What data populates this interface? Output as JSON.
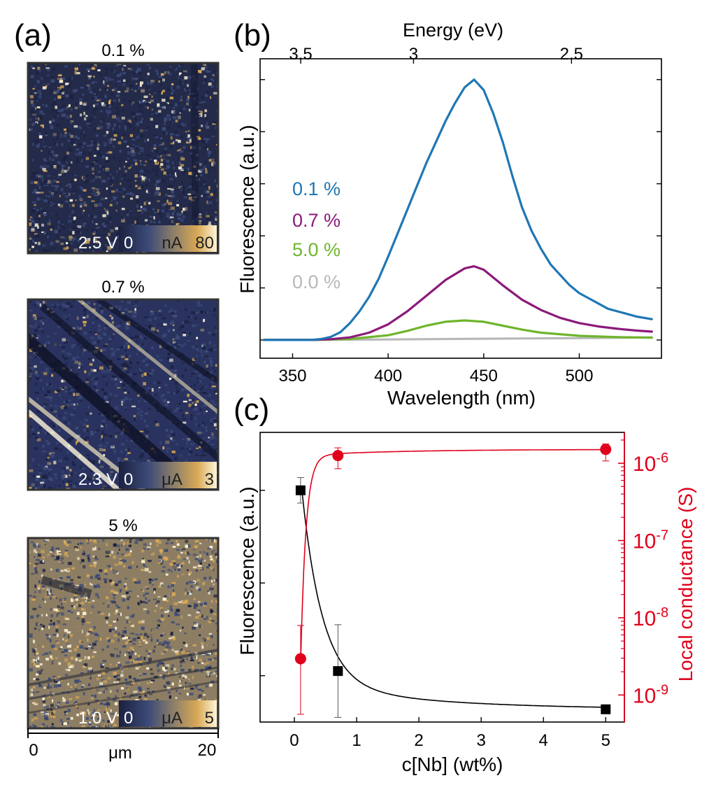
{
  "panel_a": {
    "label": "(a)",
    "maps": [
      {
        "title": "0.1 %",
        "voltage": "2.5 V",
        "cb_min": "0",
        "cb_unit": "nA",
        "cb_max": "80"
      },
      {
        "title": "0.7 %",
        "voltage": "2.3 V",
        "cb_min": "0",
        "cb_unit": "μA",
        "cb_max": "3"
      },
      {
        "title": "5 %",
        "voltage": "1.0 V",
        "cb_min": "0",
        "cb_unit": "μA",
        "cb_max": "5"
      }
    ],
    "scale": {
      "start": "0",
      "unit": "μm",
      "end": "20"
    },
    "colormap": [
      "#1b2140",
      "#3b4a78",
      "#8a7d6a",
      "#d8a855",
      "#fff5d6"
    ]
  },
  "chart_data": [
    {
      "panel": "(b)",
      "type": "line",
      "title": "",
      "xlabel": "Wavelength (nm)",
      "ylabel": "Fluorescence (a.u.)",
      "top_xlabel": "Energy (eV)",
      "xlim": [
        333,
        543
      ],
      "ylim": [
        -0.07,
        1.08
      ],
      "xticks": [
        350,
        400,
        450,
        500
      ],
      "xtick_labels": [
        "350",
        "400",
        "450",
        "500"
      ],
      "top_ticks_eV": [
        3.5,
        3,
        2.5
      ],
      "top_tick_labels": [
        "3.5",
        "3",
        "2.5"
      ],
      "series": [
        {
          "name": "0.1 %",
          "color": "#1f77b4",
          "x": [
            335,
            350,
            360,
            365,
            370,
            375,
            380,
            385,
            390,
            395,
            400,
            405,
            410,
            415,
            420,
            425,
            430,
            435,
            440,
            445,
            450,
            455,
            460,
            465,
            470,
            475,
            480,
            485,
            490,
            495,
            500,
            505,
            510,
            515,
            520,
            525,
            530,
            538
          ],
          "y": [
            0,
            0,
            0,
            0.004,
            0.012,
            0.03,
            0.065,
            0.11,
            0.165,
            0.235,
            0.32,
            0.41,
            0.5,
            0.59,
            0.68,
            0.76,
            0.84,
            0.91,
            0.97,
            1.0,
            0.96,
            0.87,
            0.76,
            0.63,
            0.51,
            0.42,
            0.35,
            0.29,
            0.25,
            0.21,
            0.18,
            0.16,
            0.14,
            0.12,
            0.11,
            0.1,
            0.09,
            0.08
          ]
        },
        {
          "name": "0.7 %",
          "color": "#8b1a7a",
          "x": [
            335,
            360,
            370,
            380,
            390,
            400,
            410,
            420,
            430,
            440,
            445,
            450,
            460,
            470,
            480,
            490,
            500,
            510,
            520,
            530,
            538
          ],
          "y": [
            0,
            0,
            0.003,
            0.01,
            0.028,
            0.06,
            0.11,
            0.17,
            0.23,
            0.275,
            0.283,
            0.27,
            0.21,
            0.155,
            0.115,
            0.085,
            0.065,
            0.052,
            0.043,
            0.036,
            0.032
          ]
        },
        {
          "name": "5.0 %",
          "color": "#6fb52c",
          "x": [
            335,
            360,
            380,
            400,
            410,
            420,
            430,
            440,
            450,
            460,
            470,
            480,
            500,
            520,
            538
          ],
          "y": [
            0,
            0,
            0.004,
            0.018,
            0.035,
            0.055,
            0.07,
            0.075,
            0.07,
            0.055,
            0.04,
            0.028,
            0.016,
            0.011,
            0.009
          ]
        },
        {
          "name": "0.0 %",
          "color": "#b8b8b8",
          "x": [
            335,
            400,
            450,
            500,
            538
          ],
          "y": [
            0.0,
            0.002,
            0.005,
            0.007,
            0.01
          ]
        }
      ]
    },
    {
      "panel": "(c)",
      "type": "scatter",
      "title": "",
      "xlabel": "c[Nb] (wt%)",
      "ylabel": "Fluorescence (a.u.)",
      "y2label": "Local conductance (S)",
      "xlim": [
        -0.55,
        5.3
      ],
      "ylim": [
        0.0,
        1.25
      ],
      "y2lim_log10": [
        -9.35,
        -5.6
      ],
      "xticks": [
        0,
        1,
        2,
        3,
        4,
        5
      ],
      "xtick_labels": [
        "0",
        "1",
        "2",
        "3",
        "4",
        "5"
      ],
      "y2ticks_log10": [
        -9,
        -8,
        -7,
        -6
      ],
      "y2tick_labels": [
        {
          "base": "10",
          "exp": "-9"
        },
        {
          "base": "10",
          "exp": "-8"
        },
        {
          "base": "10",
          "exp": "-7"
        },
        {
          "base": "10",
          "exp": "-6"
        }
      ],
      "fluorescence": {
        "color": "#000000",
        "x": [
          0.1,
          0.7,
          5.0
        ],
        "y": [
          1.0,
          0.22,
          0.055
        ],
        "err": [
          0.055,
          0.2,
          0.0
        ]
      },
      "conductance": {
        "color": "#e0001b",
        "x": [
          0.1,
          0.7,
          5.0
        ],
        "log10": [
          -8.53,
          -5.9,
          -5.82
        ],
        "log10_low": [
          -9.25,
          -6.07,
          -5.97
        ],
        "log10_high": [
          -8.1,
          -5.8,
          -5.75
        ]
      }
    }
  ]
}
